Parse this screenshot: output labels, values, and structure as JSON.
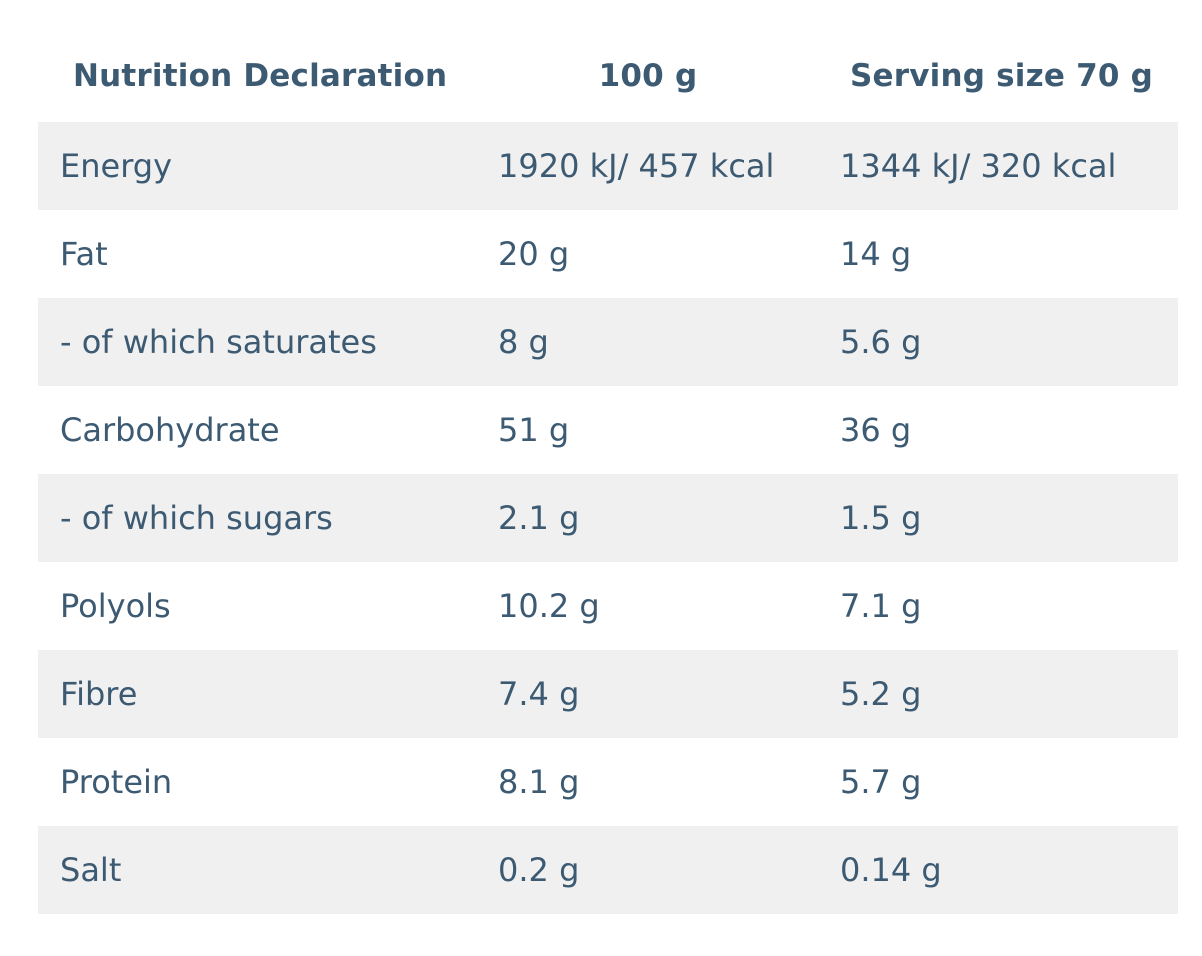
{
  "table": {
    "headers": [
      "Nutrition Declaration",
      "100 g",
      "Serving size 70 g"
    ],
    "rows": [
      [
        "Energy",
        "1920 kJ/ 457 kcal",
        "1344 kJ/ 320 kcal"
      ],
      [
        "Fat",
        "20 g",
        "14 g"
      ],
      [
        "- of which saturates",
        "8 g",
        "5.6 g"
      ],
      [
        "Carbohydrate",
        "51 g",
        "36 g"
      ],
      [
        "- of which sugars",
        "2.1 g",
        "1.5 g"
      ],
      [
        "Polyols",
        "10.2 g",
        "7.1 g"
      ],
      [
        "Fibre",
        "7.4 g",
        "5.2 g"
      ],
      [
        "Protein",
        "8.1 g",
        "5.7 g"
      ],
      [
        "Salt",
        "0.2 g",
        "0.14 g"
      ]
    ]
  },
  "colors": {
    "text": "#3d5a73",
    "row_shade": "#f0f0f0",
    "background": "#ffffff"
  }
}
